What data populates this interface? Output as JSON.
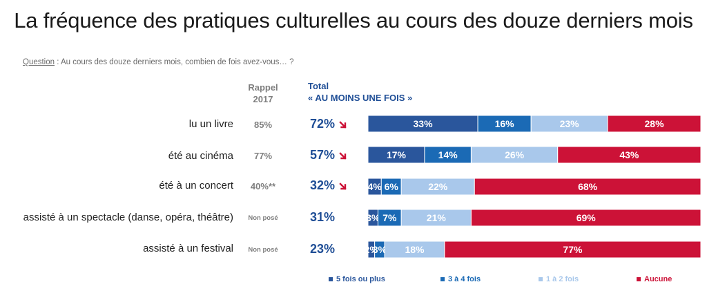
{
  "title": "La fréquence des pratiques culturelles au cours des douze derniers mois",
  "question": {
    "label": "Question",
    "text": " : Au cours des douze derniers mois, combien de fois avez-vous… ?"
  },
  "headers": {
    "rappel_line1": "Rappel",
    "rappel_line2": "2017",
    "total_line1": "Total",
    "total_line2": "« AU MOINS UNE FOIS »"
  },
  "colors": {
    "5_plus": "#2a569c",
    "3_4": "#1b6ab5",
    "1_2": "#a9c8eb",
    "aucune": "#cc1237",
    "total_text": "#1f4e96",
    "arrow": "#cc1237"
  },
  "rows": [
    {
      "label": "lu un livre",
      "rappel": "85%",
      "total": "72%",
      "arrow": "down"
    },
    {
      "label": "été au cinéma",
      "rappel": "77%",
      "total": "57%",
      "arrow": "down"
    },
    {
      "label": "été à un concert",
      "rappel": "40%**",
      "total": "32%",
      "arrow": "down"
    },
    {
      "label": "assisté à un spectacle (danse, opéra, théâtre)",
      "rappel": "Non posé",
      "total": "31%"
    },
    {
      "label": "assisté à un festival",
      "rappel": "Non posé",
      "total": "23%"
    }
  ],
  "chart_data": {
    "type": "bar",
    "orientation": "horizontal",
    "stacked": true,
    "title": "La fréquence des pratiques culturelles au cours des douze derniers mois",
    "categories": [
      "lu un livre",
      "été au cinéma",
      "été à un concert",
      "assisté à un spectacle (danse, opéra, théâtre)",
      "assisté à un festival"
    ],
    "series": [
      {
        "name": "5 fois ou plus",
        "color": "#2a569c",
        "values": [
          33,
          17,
          4,
          3,
          2
        ],
        "labels": [
          "33%",
          "17%",
          "4%",
          "3%",
          "2%"
        ]
      },
      {
        "name": "3 à 4 fois",
        "color": "#1b6ab5",
        "values": [
          16,
          14,
          6,
          7,
          3
        ],
        "labels": [
          "16%",
          "14%",
          "6%",
          "7%",
          "3%"
        ]
      },
      {
        "name": "1 à 2 fois",
        "color": "#a9c8eb",
        "values": [
          23,
          26,
          22,
          21,
          18
        ],
        "labels": [
          "23%",
          "26%",
          "22%",
          "21%",
          "18%"
        ]
      },
      {
        "name": "Aucune",
        "color": "#cc1237",
        "values": [
          28,
          43,
          68,
          69,
          77
        ],
        "labels": [
          "28%",
          "43%",
          "68%",
          "69%",
          "77%"
        ]
      }
    ],
    "legend_position": "bottom"
  }
}
